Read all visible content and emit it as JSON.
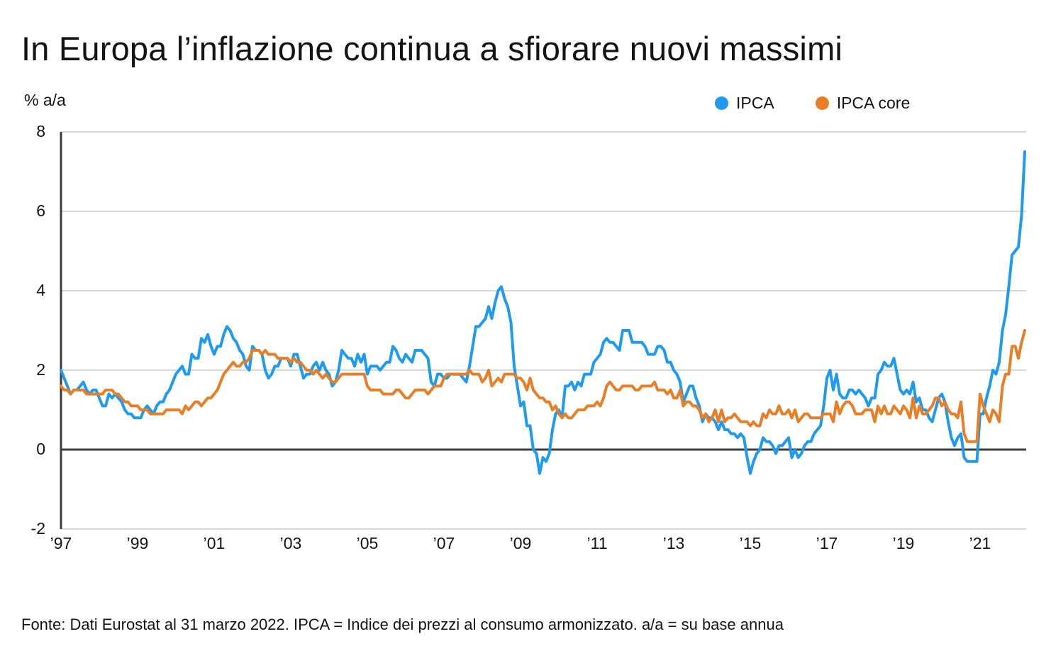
{
  "header": {
    "title": "In Europa l’inflazione continua a sfiorare nuovi massimi"
  },
  "footer": {
    "text": "Fonte: Dati Eurostat al 31 marzo 2022. IPCA = Indice dei prezzi al consumo armonizzato. a/a = su base annua"
  },
  "colors": {
    "ipca_blue": "#1E9AEF",
    "ipca_core_orange": "#E87E25",
    "grid_light": "#cbcbcb",
    "axis_dark": "#3c3c3c",
    "text": "#141414",
    "background": "#ffffff"
  },
  "chart_data": {
    "type": "line",
    "title": "In Europa l’inflazione continua a sfiorare nuovi massimi",
    "unit_label": "% a/a",
    "xlabel": "",
    "ylabel": "% a/a",
    "ylim": [
      -2,
      8
    ],
    "xlim": [
      1997.0,
      2022.3
    ],
    "grid": "horizontal",
    "legend_position": "top-right",
    "frequency": "monthly",
    "x_start": 1997.0,
    "x_step_months": 1,
    "y_ticks": [
      8,
      6,
      4,
      2,
      0,
      -2
    ],
    "x_tick_years": [
      1997,
      1999,
      2001,
      2003,
      2005,
      2007,
      2009,
      2011,
      2013,
      2015,
      2017,
      2019,
      2021
    ],
    "x_tick_labels": [
      "’97",
      "’99",
      "’01",
      "’03",
      "’05",
      "’07",
      "’09",
      "’11",
      "’13",
      "’15",
      "’17",
      "’19",
      "’21"
    ],
    "series": [
      {
        "name": "IPCA",
        "color": "#1E9AEF",
        "values": [
          2.0,
          1.8,
          1.6,
          1.4,
          1.5,
          1.5,
          1.6,
          1.7,
          1.5,
          1.4,
          1.5,
          1.5,
          1.3,
          1.1,
          1.1,
          1.4,
          1.3,
          1.4,
          1.3,
          1.2,
          1.0,
          0.9,
          0.9,
          0.8,
          0.8,
          0.8,
          1.0,
          1.1,
          1.0,
          0.9,
          1.1,
          1.2,
          1.2,
          1.4,
          1.5,
          1.7,
          1.9,
          2.0,
          2.1,
          1.9,
          1.9,
          2.4,
          2.3,
          2.3,
          2.8,
          2.7,
          2.9,
          2.6,
          2.4,
          2.6,
          2.6,
          2.9,
          3.1,
          3.0,
          2.8,
          2.7,
          2.5,
          2.4,
          2.1,
          2.0,
          2.6,
          2.5,
          2.5,
          2.4,
          2.0,
          1.8,
          1.9,
          2.1,
          2.1,
          2.3,
          2.3,
          2.3,
          2.1,
          2.4,
          2.4,
          2.1,
          1.8,
          1.9,
          1.9,
          2.1,
          2.2,
          2.0,
          2.2,
          2.0,
          1.9,
          1.6,
          1.7,
          2.0,
          2.5,
          2.4,
          2.3,
          2.3,
          2.1,
          2.4,
          2.2,
          2.4,
          1.9,
          2.1,
          2.1,
          2.1,
          2.0,
          2.1,
          2.2,
          2.2,
          2.6,
          2.5,
          2.3,
          2.2,
          2.4,
          2.3,
          2.2,
          2.5,
          2.5,
          2.5,
          2.4,
          2.3,
          1.7,
          1.6,
          1.9,
          1.9,
          1.8,
          1.8,
          1.9,
          1.9,
          1.9,
          1.9,
          1.8,
          1.7,
          2.1,
          2.6,
          3.1,
          3.1,
          3.2,
          3.3,
          3.6,
          3.3,
          3.7,
          4.0,
          4.1,
          3.8,
          3.6,
          3.2,
          2.1,
          1.6,
          1.1,
          1.2,
          0.6,
          0.6,
          0.0,
          -0.1,
          -0.6,
          -0.2,
          -0.3,
          -0.1,
          0.5,
          0.9,
          1.0,
          0.8,
          1.6,
          1.6,
          1.7,
          1.5,
          1.7,
          1.6,
          1.9,
          1.9,
          1.9,
          2.2,
          2.3,
          2.4,
          2.7,
          2.8,
          2.7,
          2.7,
          2.6,
          2.5,
          3.0,
          3.0,
          3.0,
          2.7,
          2.7,
          2.7,
          2.7,
          2.6,
          2.4,
          2.4,
          2.4,
          2.6,
          2.6,
          2.5,
          2.2,
          2.2,
          2.0,
          1.9,
          1.7,
          1.2,
          1.4,
          1.6,
          1.6,
          1.3,
          1.1,
          0.7,
          0.9,
          0.8,
          0.8,
          0.7,
          0.5,
          0.7,
          0.5,
          0.5,
          0.4,
          0.4,
          0.3,
          0.4,
          0.3,
          -0.2,
          -0.6,
          -0.3,
          -0.1,
          0.0,
          0.3,
          0.2,
          0.2,
          0.1,
          -0.1,
          0.1,
          0.1,
          0.2,
          0.3,
          -0.2,
          0.0,
          -0.2,
          -0.1,
          0.1,
          0.2,
          0.2,
          0.4,
          0.5,
          0.6,
          1.1,
          1.8,
          2.0,
          1.5,
          1.9,
          1.4,
          1.3,
          1.3,
          1.5,
          1.5,
          1.4,
          1.5,
          1.4,
          1.3,
          1.1,
          1.3,
          1.3,
          1.9,
          2.0,
          2.2,
          2.1,
          2.1,
          2.3,
          1.9,
          1.5,
          1.4,
          1.5,
          1.4,
          1.7,
          1.2,
          1.3,
          1.0,
          1.0,
          0.8,
          0.7,
          1.0,
          1.3,
          1.4,
          1.2,
          0.7,
          0.3,
          0.1,
          0.3,
          0.4,
          -0.2,
          -0.3,
          -0.3,
          -0.3,
          -0.3,
          0.9,
          0.9,
          1.3,
          1.6,
          2.0,
          1.9,
          2.2,
          3.0,
          3.4,
          4.1,
          4.9,
          5.0,
          5.1,
          5.9,
          7.5
        ]
      },
      {
        "name": "IPCA core",
        "color": "#E87E25",
        "values": [
          1.6,
          1.5,
          1.5,
          1.4,
          1.5,
          1.5,
          1.5,
          1.5,
          1.4,
          1.4,
          1.4,
          1.4,
          1.4,
          1.4,
          1.5,
          1.5,
          1.5,
          1.4,
          1.4,
          1.3,
          1.2,
          1.2,
          1.1,
          1.1,
          1.1,
          1.0,
          1.0,
          1.0,
          0.9,
          0.9,
          0.9,
          0.9,
          0.9,
          1.0,
          1.0,
          1.0,
          1.0,
          1.0,
          0.9,
          1.1,
          1.0,
          1.1,
          1.2,
          1.2,
          1.1,
          1.2,
          1.3,
          1.3,
          1.4,
          1.5,
          1.7,
          1.9,
          2.0,
          2.1,
          2.2,
          2.1,
          2.1,
          2.2,
          2.2,
          2.3,
          2.5,
          2.5,
          2.5,
          2.4,
          2.5,
          2.4,
          2.4,
          2.4,
          2.3,
          2.3,
          2.3,
          2.3,
          2.2,
          2.3,
          2.2,
          2.2,
          2.1,
          2.0,
          2.0,
          1.9,
          2.0,
          1.9,
          1.8,
          1.9,
          1.8,
          1.7,
          1.7,
          1.8,
          1.9,
          1.9,
          1.9,
          1.9,
          1.9,
          1.9,
          1.9,
          1.9,
          1.6,
          1.5,
          1.5,
          1.5,
          1.5,
          1.4,
          1.4,
          1.4,
          1.4,
          1.5,
          1.5,
          1.4,
          1.3,
          1.3,
          1.4,
          1.5,
          1.5,
          1.5,
          1.5,
          1.4,
          1.5,
          1.6,
          1.6,
          1.6,
          1.8,
          1.9,
          1.9,
          1.9,
          1.9,
          1.9,
          1.9,
          1.9,
          2.0,
          1.9,
          1.9,
          1.9,
          1.7,
          1.8,
          2.0,
          1.6,
          1.7,
          1.8,
          1.7,
          1.9,
          1.9,
          1.9,
          1.9,
          1.8,
          1.8,
          1.7,
          1.5,
          1.8,
          1.5,
          1.4,
          1.3,
          1.3,
          1.2,
          1.2,
          1.0,
          1.1,
          0.9,
          0.8,
          0.9,
          0.8,
          0.8,
          0.9,
          1.0,
          1.0,
          1.0,
          1.1,
          1.1,
          1.1,
          1.2,
          1.1,
          1.3,
          1.6,
          1.7,
          1.6,
          1.5,
          1.5,
          1.6,
          1.6,
          1.6,
          1.6,
          1.5,
          1.5,
          1.6,
          1.6,
          1.6,
          1.6,
          1.7,
          1.5,
          1.5,
          1.5,
          1.4,
          1.5,
          1.3,
          1.3,
          1.5,
          1.1,
          1.2,
          1.2,
          1.1,
          1.1,
          1.0,
          0.8,
          0.9,
          0.7,
          0.8,
          1.0,
          0.7,
          1.0,
          0.7,
          0.8,
          0.8,
          0.9,
          0.8,
          0.7,
          0.7,
          0.7,
          0.6,
          0.7,
          0.6,
          0.6,
          0.9,
          0.8,
          1.0,
          0.9,
          0.9,
          1.1,
          0.9,
          0.9,
          1.0,
          0.8,
          1.0,
          0.7,
          0.8,
          0.9,
          0.9,
          0.8,
          0.8,
          0.8,
          0.8,
          0.9,
          0.9,
          0.9,
          0.7,
          1.2,
          0.9,
          1.1,
          1.2,
          1.2,
          1.1,
          0.9,
          0.9,
          0.9,
          1.0,
          1.0,
          1.0,
          0.7,
          1.1,
          0.9,
          1.1,
          0.9,
          0.9,
          1.1,
          1.0,
          0.9,
          1.1,
          1.0,
          0.8,
          1.3,
          0.8,
          1.1,
          0.9,
          0.9,
          1.0,
          1.1,
          1.3,
          1.3,
          1.1,
          1.2,
          1.0,
          0.9,
          0.9,
          0.8,
          1.2,
          0.4,
          0.2,
          0.2,
          0.2,
          0.2,
          1.4,
          1.1,
          0.9,
          0.7,
          1.0,
          0.9,
          0.7,
          1.6,
          1.9,
          1.9,
          2.6,
          2.6,
          2.3,
          2.7,
          3.0
        ]
      }
    ]
  }
}
